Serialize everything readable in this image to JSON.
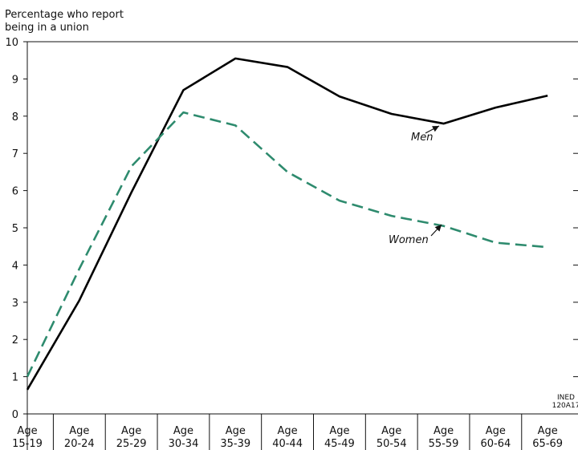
{
  "chart_data": {
    "type": "line",
    "ylabel_lines": [
      "Percentage who report",
      "being in a union"
    ],
    "ylim": [
      0,
      10
    ],
    "yticks": [
      "0",
      "1",
      "2",
      "3",
      "4",
      "5",
      "6",
      "7",
      "8",
      "9",
      "10"
    ],
    "categories": [
      [
        "Age",
        "15-19"
      ],
      [
        "Age",
        "20-24"
      ],
      [
        "Age",
        "25-29"
      ],
      [
        "Age",
        "30-34"
      ],
      [
        "Age",
        "35-39"
      ],
      [
        "Age",
        "40-44"
      ],
      [
        "Age",
        "45-49"
      ],
      [
        "Age",
        "50-54"
      ],
      [
        "Age",
        "55-59"
      ],
      [
        "Age",
        "60-64"
      ],
      [
        "Age",
        "65-69"
      ]
    ],
    "series": [
      {
        "name": "Men",
        "color": "#000000",
        "style": "solid",
        "values": [
          0.65,
          3.05,
          5.95,
          8.7,
          9.55,
          9.32,
          8.53,
          8.06,
          7.8,
          8.23,
          8.55
        ]
      },
      {
        "name": "Women",
        "color": "#2e8b6e",
        "style": "dashed",
        "values": [
          1.0,
          3.9,
          6.65,
          8.1,
          7.75,
          6.5,
          5.73,
          5.32,
          5.05,
          4.6,
          4.48
        ]
      }
    ],
    "credit_lines": [
      "INED",
      "120A17"
    ]
  }
}
